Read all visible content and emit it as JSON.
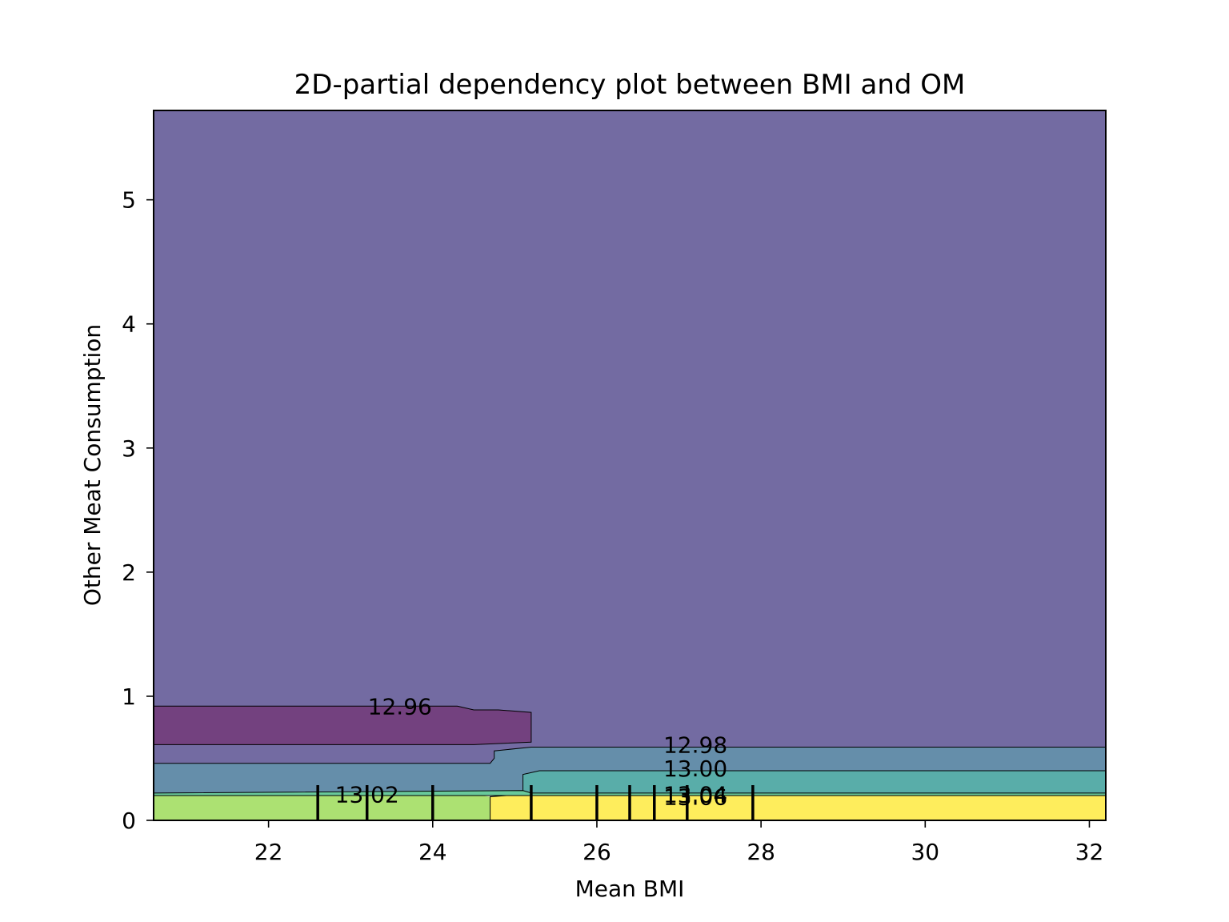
{
  "chart_data": {
    "type": "contour",
    "title": "2D-partial dependency plot between BMI and OM",
    "xlabel": "Mean BMI",
    "ylabel": "Other Meat Consumption",
    "xlim": [
      20.6,
      32.2
    ],
    "ylim": [
      0,
      5.72
    ],
    "xticks": [
      22,
      24,
      26,
      28,
      30,
      32
    ],
    "yticks": [
      0,
      1,
      2,
      3,
      4,
      5
    ],
    "grid": false,
    "colormap": "viridis",
    "fill_alpha": 0.75,
    "levels": [
      12.94,
      12.96,
      12.98,
      13.0,
      13.02,
      13.04,
      13.06,
      13.08
    ],
    "level_colors": [
      "#440154",
      "#443983",
      "#31688e",
      "#21918c",
      "#35b779",
      "#90d743",
      "#fde725"
    ],
    "regions": [
      {
        "range": [
          12.96,
          12.98
        ],
        "color": "#443983",
        "polygon": [
          [
            20.6,
            0.92
          ],
          [
            24.3,
            0.92
          ],
          [
            24.5,
            0.89
          ],
          [
            24.8,
            0.89
          ],
          [
            25.2,
            0.87
          ],
          [
            25.2,
            0.63
          ],
          [
            24.5,
            0.61
          ],
          [
            20.6,
            0.61
          ],
          [
            20.6,
            0.46
          ],
          [
            24.7,
            0.46
          ],
          [
            24.75,
            0.5
          ],
          [
            24.75,
            0.56
          ],
          [
            25.2,
            0.59
          ],
          [
            32.2,
            0.59
          ],
          [
            32.2,
            5.72
          ],
          [
            20.6,
            5.72
          ]
        ]
      },
      {
        "range": [
          12.94,
          12.96
        ],
        "color": "#440154",
        "polygon": [
          [
            20.6,
            0.92
          ],
          [
            24.3,
            0.92
          ],
          [
            24.5,
            0.89
          ],
          [
            24.8,
            0.89
          ],
          [
            25.2,
            0.87
          ],
          [
            25.2,
            0.63
          ],
          [
            24.5,
            0.61
          ],
          [
            20.6,
            0.61
          ]
        ]
      },
      {
        "range": [
          12.98,
          13.0
        ],
        "color": "#31688e",
        "polygon": [
          [
            20.6,
            0.46
          ],
          [
            24.7,
            0.46
          ],
          [
            24.75,
            0.5
          ],
          [
            24.75,
            0.56
          ],
          [
            25.2,
            0.59
          ],
          [
            32.2,
            0.59
          ],
          [
            32.2,
            0.4
          ],
          [
            25.3,
            0.4
          ],
          [
            25.1,
            0.37
          ],
          [
            25.1,
            0.24
          ],
          [
            20.6,
            0.22
          ]
        ]
      },
      {
        "range": [
          13.0,
          13.02
        ],
        "color": "#21918c",
        "polygon": [
          [
            25.1,
            0.24
          ],
          [
            25.1,
            0.37
          ],
          [
            25.3,
            0.4
          ],
          [
            32.2,
            0.4
          ],
          [
            32.2,
            0.22
          ],
          [
            25.2,
            0.22
          ]
        ]
      },
      {
        "range": [
          13.02,
          13.04
        ],
        "color": "#35b779",
        "polygon": [
          [
            20.6,
            0.22
          ],
          [
            25.1,
            0.24
          ],
          [
            25.2,
            0.22
          ],
          [
            32.2,
            0.22
          ],
          [
            32.2,
            0.2
          ],
          [
            24.9,
            0.2
          ],
          [
            24.6,
            0.2
          ],
          [
            20.6,
            0.2
          ]
        ]
      },
      {
        "range": [
          13.04,
          13.06
        ],
        "color": "#90d743",
        "polygon": [
          [
            20.6,
            0.2
          ],
          [
            24.6,
            0.2
          ],
          [
            24.7,
            0.19
          ],
          [
            24.7,
            0
          ],
          [
            20.6,
            0
          ]
        ]
      },
      {
        "range": [
          13.06,
          13.08
        ],
        "color": "#fde725",
        "polygon": [
          [
            24.7,
            0
          ],
          [
            24.7,
            0.19
          ],
          [
            24.9,
            0.2
          ],
          [
            32.2,
            0.2
          ],
          [
            32.2,
            0
          ]
        ]
      }
    ],
    "contour_lines": [
      {
        "level": 12.96,
        "points": [
          [
            20.6,
            0.92
          ],
          [
            24.3,
            0.92
          ],
          [
            24.5,
            0.89
          ],
          [
            24.8,
            0.89
          ],
          [
            25.2,
            0.87
          ],
          [
            25.2,
            0.63
          ],
          [
            24.5,
            0.61
          ],
          [
            20.6,
            0.61
          ]
        ]
      },
      {
        "level": 12.98,
        "points": [
          [
            20.6,
            0.46
          ],
          [
            24.7,
            0.46
          ],
          [
            24.75,
            0.5
          ],
          [
            24.75,
            0.56
          ],
          [
            25.2,
            0.59
          ],
          [
            32.2,
            0.59
          ]
        ]
      },
      {
        "level": 13.0,
        "points": [
          [
            25.1,
            0.24
          ],
          [
            25.1,
            0.37
          ],
          [
            25.3,
            0.4
          ],
          [
            32.2,
            0.4
          ]
        ]
      },
      {
        "level": 13.02,
        "points": [
          [
            20.6,
            0.22
          ],
          [
            25.1,
            0.24
          ],
          [
            25.2,
            0.22
          ],
          [
            32.2,
            0.22
          ]
        ]
      },
      {
        "level": 13.04,
        "points": [
          [
            20.6,
            0.2
          ],
          [
            24.6,
            0.2
          ],
          [
            24.9,
            0.2
          ],
          [
            32.2,
            0.2
          ]
        ]
      },
      {
        "level": 13.06,
        "points": [
          [
            24.7,
            0
          ],
          [
            24.7,
            0.19
          ],
          [
            24.9,
            0.2
          ],
          [
            32.2,
            0.2
          ]
        ]
      }
    ],
    "contour_labels": [
      {
        "text": "12.96",
        "x": 23.6,
        "y": 0.92
      },
      {
        "text": "12.98",
        "x": 27.2,
        "y": 0.61
      },
      {
        "text": "13.00",
        "x": 27.2,
        "y": 0.42
      },
      {
        "text": "13.02",
        "x": 23.2,
        "y": 0.21
      },
      {
        "text": "13.04",
        "x": 27.2,
        "y": 0.21
      },
      {
        "text": "13.06",
        "x": 27.2,
        "y": 0.19
      }
    ],
    "rug_x": [
      22.6,
      23.2,
      24.0,
      25.2,
      26.0,
      26.4,
      26.7,
      27.1,
      27.9
    ]
  }
}
